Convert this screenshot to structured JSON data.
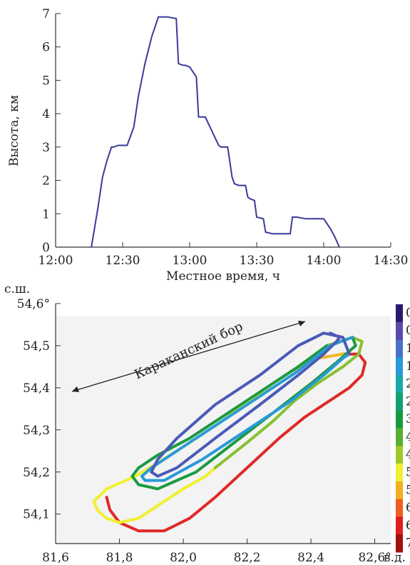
{
  "chart_data": [
    {
      "type": "line",
      "xlabel": "Местное время, ч",
      "ylabel": "Высота, км",
      "x_ticks": [
        "12:00",
        "12:30",
        "13:00",
        "13:30",
        "14:00",
        "14:30"
      ],
      "y_ticks": [
        "0",
        "1",
        "2",
        "3",
        "4",
        "5",
        "6",
        "7"
      ],
      "xlim": [
        "12:00",
        "14:30"
      ],
      "ylim": [
        0,
        7
      ],
      "series": [
        {
          "color": "#3a3a9a",
          "x": [
            "12:16",
            "12:17",
            "12:19",
            "12:21",
            "12:23",
            "12:25",
            "12:26",
            "12:28",
            "12:30",
            "12:32",
            "12:35",
            "12:37",
            "12:40",
            "12:43",
            "12:46",
            "12:49",
            "12:50",
            "12:54",
            "12:55",
            "12:57",
            "12:58",
            "13:00",
            "13:03",
            "13:04",
            "13:06",
            "13:07",
            "13:13",
            "13:14",
            "13:17",
            "13:19",
            "13:20",
            "13:22",
            "13:25",
            "13:26",
            "13:27",
            "13:29",
            "13:30",
            "13:33",
            "13:34",
            "13:37",
            "13:45",
            "13:46",
            "13:48",
            "13:52",
            "13:56",
            "14:00",
            "14:03",
            "14:05",
            "14:07"
          ],
          "y": [
            0,
            0.4,
            1.2,
            2.1,
            2.6,
            3.0,
            3.0,
            3.05,
            3.05,
            3.05,
            3.6,
            4.5,
            5.5,
            6.3,
            6.9,
            6.9,
            6.9,
            6.85,
            5.5,
            5.45,
            5.45,
            5.4,
            5.1,
            3.9,
            3.9,
            3.9,
            3.05,
            3.0,
            3.0,
            2.1,
            1.9,
            1.85,
            1.85,
            1.5,
            1.45,
            1.4,
            0.9,
            0.85,
            0.45,
            0.4,
            0.4,
            0.9,
            0.9,
            0.85,
            0.85,
            0.85,
            0.55,
            0.3,
            0.0
          ]
        }
      ]
    },
    {
      "type": "line",
      "x_corner_label": "в.д.",
      "y_corner_label": "с.ш.",
      "x_ticks": [
        "81,6",
        "81,8",
        "82,0",
        "82,2",
        "82,4",
        "82,6°"
      ],
      "y_ticks": [
        "54,1",
        "54,2",
        "54,3",
        "54,4",
        "54,5",
        "54,6°"
      ],
      "xlim": [
        81.6,
        82.65
      ],
      "ylim": [
        54.03,
        54.6
      ],
      "annotation": "Караканский бор",
      "colorbar_ticks": [
        "0",
        "0",
        "1",
        "1",
        "2",
        "2",
        "3",
        "4",
        "4",
        "5",
        "5",
        "6",
        "6",
        "7"
      ],
      "colorbar_colors": [
        "#2a1a6e",
        "#5a4aa8",
        "#4a70c8",
        "#2a9ad8",
        "#1aa8a8",
        "#14a070",
        "#1a9a40",
        "#58b030",
        "#a0c828",
        "#f0f030",
        "#f0b020",
        "#f06020",
        "#e02020",
        "#a01010"
      ],
      "track_segments": [
        {
          "color": "#e02828",
          "lon": [
            81.76,
            81.77,
            81.8,
            81.86,
            81.94,
            82.02,
            82.1,
            82.2,
            82.3,
            82.38,
            82.46,
            82.52,
            82.56,
            82.57,
            82.55,
            82.5
          ],
          "lat": [
            54.14,
            54.11,
            54.08,
            54.06,
            54.06,
            54.09,
            54.14,
            54.21,
            54.28,
            54.33,
            54.37,
            54.4,
            54.43,
            54.46,
            54.48,
            54.48
          ]
        },
        {
          "color": "#f0b428",
          "lon": [
            82.5,
            82.42,
            82.34,
            82.28
          ],
          "lat": [
            54.48,
            54.47,
            54.44,
            54.41
          ]
        },
        {
          "color": "#f0f030",
          "lon": [
            82.28,
            82.12,
            81.98,
            81.85,
            81.76,
            81.72,
            81.73,
            81.76,
            81.8,
            81.86,
            81.92,
            82.0,
            82.07,
            82.1
          ],
          "lat": [
            54.41,
            54.32,
            54.25,
            54.19,
            54.16,
            54.13,
            54.11,
            54.09,
            54.08,
            54.09,
            54.12,
            54.16,
            54.19,
            54.21
          ]
        },
        {
          "color": "#88c030",
          "lon": [
            82.1,
            82.2,
            82.28,
            82.35,
            82.42,
            82.5,
            82.55,
            82.56,
            82.53,
            82.45
          ],
          "lat": [
            54.21,
            54.27,
            54.32,
            54.37,
            54.41,
            54.45,
            54.48,
            54.51,
            54.52,
            54.5
          ]
        },
        {
          "color": "#1a9a40",
          "lon": [
            82.45,
            82.36,
            82.26,
            82.14,
            82.02,
            81.92,
            81.86,
            81.84,
            81.86,
            81.92,
            82.04,
            82.16,
            82.28,
            82.4,
            82.48,
            82.54,
            82.53
          ],
          "lat": [
            54.5,
            54.45,
            54.4,
            54.34,
            54.28,
            54.24,
            54.21,
            54.19,
            54.17,
            54.16,
            54.2,
            54.27,
            54.34,
            54.41,
            54.46,
            54.5,
            54.52
          ]
        },
        {
          "color": "#2a9ad8",
          "lon": [
            82.53,
            82.46,
            82.36,
            82.24,
            82.1,
            81.98,
            81.9,
            81.87,
            81.88,
            81.94,
            82.06,
            82.2,
            82.34,
            82.44,
            82.5,
            82.52
          ],
          "lat": [
            54.52,
            54.5,
            54.44,
            54.38,
            54.31,
            54.25,
            54.21,
            54.19,
            54.18,
            54.18,
            54.23,
            54.3,
            54.37,
            54.43,
            54.47,
            54.48
          ]
        },
        {
          "color": "#4a5ab8",
          "lon": [
            82.52,
            82.5,
            82.44,
            82.36,
            82.24,
            82.1,
            81.98,
            81.92,
            81.9,
            81.92,
            81.98,
            82.1,
            82.24,
            82.36,
            82.44,
            82.48,
            82.49,
            82.46
          ],
          "lat": [
            54.48,
            54.52,
            54.53,
            54.5,
            54.43,
            54.36,
            54.28,
            54.23,
            54.2,
            54.19,
            54.21,
            54.28,
            54.36,
            54.43,
            54.48,
            54.51,
            54.52,
            54.53
          ]
        }
      ]
    }
  ]
}
